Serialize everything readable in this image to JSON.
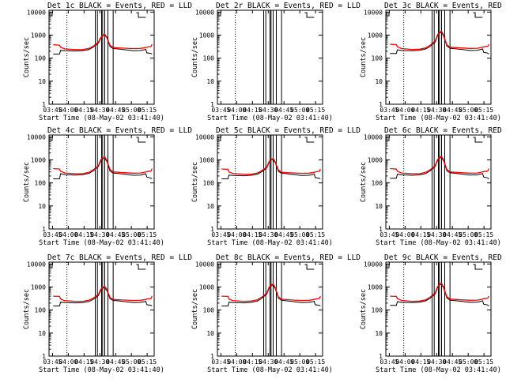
{
  "figure": {
    "xlabel": "Start Time (08-May-02 03:41:40)",
    "ylabel": "Counts/sec",
    "xticks": [
      "03:45",
      "04:00",
      "04:15",
      "04:30",
      "04:45",
      "05:00",
      "05:15"
    ],
    "yticks": [
      "1",
      "10",
      "100",
      "1000",
      "10000"
    ],
    "colors": {
      "events": "#000000",
      "lld": "#ff0000",
      "axes": "#000000"
    }
  },
  "chart_data": [
    {
      "type": "line",
      "title": "Det 1c BLACK = Events, RED = LLD",
      "xlabel": "Start Time (08-May-02 03:41:40)",
      "ylabel": "Counts/sec",
      "yscale": "log",
      "xlim_min": [
        4,
        100
      ],
      "ylim": [
        1,
        12000
      ],
      "series": [
        {
          "name": "Events",
          "x": [
            4,
            10,
            11,
            15,
            25,
            32,
            38,
            42,
            47,
            49,
            51,
            53,
            55,
            58,
            61,
            66,
            73,
            80,
            87,
            92,
            93,
            97,
            98
          ],
          "y": [
            150,
            150,
            220,
            210,
            205,
            210,
            235,
            300,
            450,
            700,
            950,
            1000,
            750,
            320,
            260,
            250,
            230,
            210,
            215,
            240,
            170,
            160,
            150
          ]
        },
        {
          "name": "LLD",
          "x": [
            4,
            10,
            11,
            15,
            25,
            32,
            38,
            42,
            47,
            49,
            51,
            53,
            55,
            58,
            61,
            66,
            73,
            80,
            87,
            92,
            93,
            97,
            98
          ],
          "y": [
            380,
            370,
            300,
            250,
            235,
            235,
            265,
            330,
            500,
            760,
            1000,
            1100,
            800,
            360,
            290,
            280,
            270,
            260,
            265,
            290,
            300,
            320,
            400
          ]
        }
      ],
      "vlines": {
        "dotted": [
          17
        ],
        "solid": [
          44,
          46,
          50,
          51,
          53,
          56,
          61
        ]
      }
    },
    {
      "type": "line",
      "title": "Det 2r BLACK = Events, RED = LLD",
      "xlabel": "Start Time (08-May-02 03:41:40)",
      "ylabel": "Counts/sec",
      "yscale": "log",
      "xlim_min": [
        4,
        100
      ],
      "ylim": [
        1,
        12000
      ],
      "series": [],
      "vlines": {
        "dotted": [
          17
        ],
        "solid": [
          44,
          46,
          50,
          51,
          53,
          56,
          61
        ]
      }
    },
    {
      "type": "line",
      "title": "Det 3c BLACK = Events, RED = LLD",
      "xlabel": "Start Time (08-May-02 03:41:40)",
      "ylabel": "Counts/sec",
      "yscale": "log",
      "xlim_min": [
        4,
        100
      ],
      "ylim": [
        1,
        12000
      ],
      "series": [
        {
          "name": "Events",
          "x": [
            4,
            10,
            11,
            15,
            25,
            32,
            38,
            42,
            47,
            49,
            51,
            53,
            55,
            58,
            61,
            66,
            73,
            80,
            87,
            92,
            93,
            97,
            98
          ],
          "y": [
            160,
            160,
            230,
            215,
            210,
            220,
            250,
            320,
            500,
            900,
            1300,
            1300,
            900,
            340,
            270,
            255,
            235,
            215,
            220,
            250,
            180,
            165,
            150
          ]
        },
        {
          "name": "LLD",
          "x": [
            4,
            10,
            11,
            15,
            25,
            32,
            38,
            42,
            47,
            49,
            51,
            53,
            55,
            58,
            61,
            66,
            73,
            80,
            87,
            92,
            93,
            97,
            98
          ],
          "y": [
            400,
            390,
            310,
            260,
            240,
            245,
            280,
            360,
            560,
            1000,
            1400,
            1450,
            1000,
            380,
            300,
            290,
            275,
            265,
            270,
            300,
            310,
            330,
            400
          ]
        }
      ],
      "vlines": {
        "dotted": [
          17
        ],
        "solid": [
          44,
          46,
          50,
          51,
          53,
          56,
          61
        ]
      }
    },
    {
      "type": "line",
      "title": "Det 4c BLACK = Events, RED = LLD",
      "xlabel": "Start Time (08-May-02 03:41:40)",
      "ylabel": "Counts/sec",
      "yscale": "log",
      "xlim_min": [
        4,
        100
      ],
      "ylim": [
        1,
        12000
      ],
      "series": [
        {
          "name": "Events",
          "x": [
            4,
            10,
            11,
            15,
            25,
            32,
            38,
            42,
            47,
            49,
            51,
            53,
            55,
            58,
            61,
            66,
            73,
            80,
            87,
            92,
            93,
            97,
            98
          ],
          "y": [
            150,
            150,
            250,
            230,
            220,
            230,
            260,
            330,
            520,
            850,
            1150,
            1150,
            850,
            330,
            270,
            255,
            235,
            215,
            220,
            250,
            180,
            160,
            150
          ]
        },
        {
          "name": "LLD",
          "x": [
            4,
            10,
            11,
            15,
            25,
            32,
            38,
            42,
            47,
            49,
            51,
            53,
            55,
            58,
            61,
            66,
            73,
            80,
            87,
            92,
            93,
            97,
            98
          ],
          "y": [
            420,
            400,
            320,
            270,
            250,
            250,
            290,
            370,
            570,
            950,
            1300,
            1350,
            950,
            380,
            300,
            290,
            275,
            265,
            270,
            300,
            310,
            330,
            420
          ]
        }
      ],
      "vlines": {
        "dotted": [
          17
        ],
        "solid": [
          44,
          46,
          50,
          51,
          53,
          56,
          61
        ]
      }
    },
    {
      "type": "line",
      "title": "Det 5c BLACK = Events, RED = LLD",
      "xlabel": "Start Time (08-May-02 03:41:40)",
      "ylabel": "Counts/sec",
      "yscale": "log",
      "xlim_min": [
        4,
        100
      ],
      "ylim": [
        1,
        12000
      ],
      "series": [
        {
          "name": "Events",
          "x": [
            4,
            10,
            11,
            15,
            25,
            32,
            38,
            42,
            47,
            49,
            51,
            53,
            55,
            58,
            61,
            66,
            73,
            80,
            87,
            92,
            93,
            97,
            98
          ],
          "y": [
            150,
            150,
            220,
            210,
            205,
            215,
            240,
            300,
            450,
            750,
            1000,
            1000,
            750,
            320,
            260,
            250,
            230,
            210,
            215,
            240,
            170,
            160,
            150
          ]
        },
        {
          "name": "LLD",
          "x": [
            4,
            10,
            11,
            15,
            25,
            32,
            38,
            42,
            47,
            49,
            51,
            53,
            55,
            58,
            61,
            66,
            73,
            80,
            87,
            92,
            93,
            97,
            98
          ],
          "y": [
            400,
            390,
            300,
            255,
            240,
            240,
            270,
            340,
            500,
            820,
            1100,
            1150,
            820,
            360,
            290,
            280,
            270,
            260,
            265,
            290,
            300,
            320,
            400
          ]
        }
      ],
      "vlines": {
        "dotted": [
          17
        ],
        "solid": [
          44,
          46,
          50,
          51,
          53,
          56,
          61
        ]
      }
    },
    {
      "type": "line",
      "title": "Det 6c BLACK = Events, RED = LLD",
      "xlabel": "Start Time (08-May-02 03:41:40)",
      "ylabel": "Counts/sec",
      "yscale": "log",
      "xlim_min": [
        4,
        100
      ],
      "ylim": [
        1,
        12000
      ],
      "series": [
        {
          "name": "Events",
          "x": [
            4,
            10,
            11,
            15,
            25,
            32,
            38,
            42,
            47,
            49,
            51,
            53,
            55,
            58,
            61,
            66,
            73,
            80,
            87,
            92,
            93,
            97,
            98
          ],
          "y": [
            160,
            160,
            240,
            225,
            215,
            225,
            255,
            330,
            520,
            900,
            1250,
            1250,
            900,
            340,
            275,
            260,
            240,
            220,
            225,
            255,
            180,
            165,
            150
          ]
        },
        {
          "name": "LLD",
          "x": [
            4,
            10,
            11,
            15,
            25,
            32,
            38,
            42,
            47,
            49,
            51,
            53,
            55,
            58,
            61,
            66,
            73,
            80,
            87,
            92,
            93,
            97,
            98
          ],
          "y": [
            420,
            400,
            320,
            270,
            250,
            250,
            290,
            370,
            570,
            1000,
            1350,
            1400,
            1000,
            380,
            300,
            290,
            275,
            265,
            270,
            300,
            310,
            330,
            420
          ]
        }
      ],
      "vlines": {
        "dotted": [
          17
        ],
        "solid": [
          44,
          46,
          50,
          51,
          53,
          56,
          61
        ]
      }
    },
    {
      "type": "line",
      "title": "Det 7c BLACK = Events, RED = LLD",
      "xlabel": "Start Time (08-May-02 03:41:40)",
      "ylabel": "Counts/sec",
      "yscale": "log",
      "xlim_min": [
        4,
        100
      ],
      "ylim": [
        1,
        12000
      ],
      "series": [
        {
          "name": "Events",
          "x": [
            4,
            10,
            11,
            15,
            25,
            32,
            38,
            42,
            47,
            49,
            51,
            53,
            55,
            58,
            61,
            66,
            73,
            80,
            87,
            92,
            93,
            97,
            98
          ],
          "y": [
            150,
            150,
            220,
            210,
            205,
            210,
            235,
            290,
            430,
            680,
            900,
            900,
            700,
            310,
            260,
            250,
            230,
            210,
            215,
            240,
            170,
            160,
            150
          ]
        },
        {
          "name": "LLD",
          "x": [
            4,
            10,
            11,
            15,
            25,
            32,
            38,
            42,
            47,
            49,
            51,
            53,
            55,
            58,
            61,
            66,
            73,
            80,
            87,
            92,
            93,
            97,
            98
          ],
          "y": [
            400,
            390,
            300,
            255,
            240,
            240,
            270,
            330,
            480,
            760,
            1000,
            1050,
            780,
            350,
            290,
            280,
            270,
            260,
            265,
            290,
            300,
            320,
            400
          ]
        }
      ],
      "vlines": {
        "dotted": [
          17
        ],
        "solid": [
          44,
          46,
          50,
          51,
          53,
          56,
          61
        ]
      }
    },
    {
      "type": "line",
      "title": "Det 8c BLACK = Events, RED = LLD",
      "xlabel": "Start Time (08-May-02 03:41:40)",
      "ylabel": "Counts/sec",
      "yscale": "log",
      "xlim_min": [
        4,
        100
      ],
      "ylim": [
        1,
        12000
      ],
      "series": [
        {
          "name": "Events",
          "x": [
            4,
            10,
            11,
            15,
            25,
            32,
            38,
            42,
            47,
            49,
            51,
            53,
            55,
            58,
            61,
            66,
            73,
            80,
            87,
            92,
            93,
            97,
            98
          ],
          "y": [
            150,
            150,
            220,
            210,
            205,
            215,
            245,
            320,
            500,
            850,
            1200,
            1200,
            850,
            330,
            265,
            250,
            230,
            210,
            215,
            240,
            170,
            160,
            150
          ]
        },
        {
          "name": "LLD",
          "x": [
            4,
            10,
            11,
            15,
            25,
            32,
            38,
            42,
            47,
            49,
            51,
            53,
            55,
            58,
            61,
            66,
            73,
            80,
            87,
            92,
            93,
            97,
            98
          ],
          "y": [
            400,
            390,
            300,
            255,
            240,
            245,
            280,
            360,
            550,
            950,
            1300,
            1350,
            950,
            370,
            295,
            285,
            270,
            260,
            265,
            290,
            300,
            320,
            400
          ]
        }
      ],
      "vlines": {
        "dotted": [
          17
        ],
        "solid": [
          44,
          46,
          50,
          51,
          53,
          56,
          61
        ]
      }
    },
    {
      "type": "line",
      "title": "Det 9c BLACK = Events, RED = LLD",
      "xlabel": "Start Time (08-May-02 03:41:40)",
      "ylabel": "Counts/sec",
      "yscale": "log",
      "xlim_min": [
        4,
        100
      ],
      "ylim": [
        1,
        12000
      ],
      "series": [
        {
          "name": "Events",
          "x": [
            4,
            10,
            11,
            15,
            25,
            32,
            38,
            42,
            47,
            49,
            51,
            53,
            55,
            58,
            61,
            66,
            73,
            80,
            87,
            92,
            93,
            97,
            98
          ],
          "y": [
            160,
            160,
            230,
            215,
            210,
            220,
            250,
            320,
            500,
            900,
            1300,
            1300,
            900,
            340,
            270,
            255,
            235,
            215,
            220,
            250,
            180,
            165,
            150
          ]
        },
        {
          "name": "LLD",
          "x": [
            4,
            10,
            11,
            15,
            25,
            32,
            38,
            42,
            47,
            49,
            51,
            53,
            55,
            58,
            61,
            66,
            73,
            80,
            87,
            92,
            93,
            97,
            98
          ],
          "y": [
            400,
            390,
            310,
            260,
            240,
            245,
            280,
            360,
            560,
            1000,
            1400,
            1450,
            1000,
            380,
            300,
            290,
            275,
            265,
            270,
            300,
            310,
            330,
            400
          ]
        }
      ],
      "vlines": {
        "dotted": [
          17
        ],
        "solid": [
          44,
          46,
          50,
          51,
          53,
          56,
          61
        ]
      }
    }
  ]
}
